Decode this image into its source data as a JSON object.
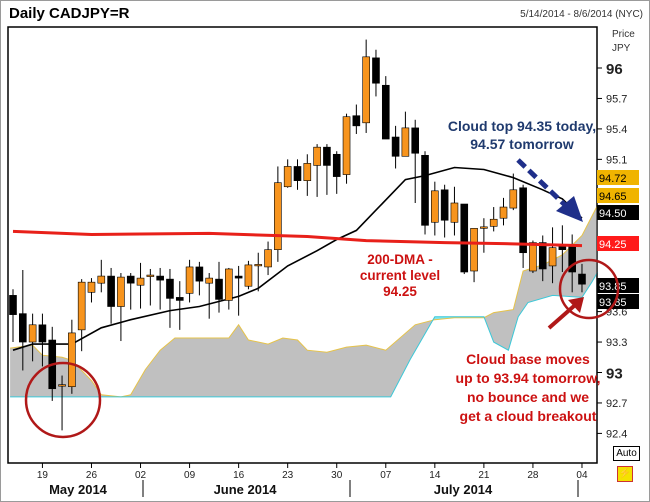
{
  "header": {
    "title": "Daily CADJPY=R",
    "date_range": "5/14/2014 - 8/6/2014 (NYC)"
  },
  "axis": {
    "price_label": "Price",
    "currency_label": "JPY",
    "auto_button": "Auto"
  },
  "chart_data": {
    "type": "candlestick",
    "title": "Daily CADJPY=R",
    "ylabel": "Price JPY",
    "ylim": [
      92.25,
      96.4
    ],
    "y_ticks": [
      "96",
      "95.7",
      "95.4",
      "95.1",
      "93.6",
      "93.3",
      "93",
      "92.7",
      "92.4"
    ],
    "x_ticks": [
      "19",
      "26",
      "02",
      "09",
      "16",
      "23",
      "30",
      "07",
      "14",
      "21",
      "28",
      "04"
    ],
    "x_tick_index": [
      3,
      8,
      13,
      18,
      23,
      28,
      33,
      38,
      43,
      48,
      53,
      58
    ],
    "months": [
      "May 2014",
      "June 2014",
      "July 2014"
    ],
    "ohlc": [
      [
        93.76,
        93.82,
        93.3,
        93.57
      ],
      [
        93.58,
        94.01,
        93.02,
        93.3
      ],
      [
        93.3,
        93.58,
        93.11,
        93.47
      ],
      [
        93.47,
        93.58,
        93.06,
        93.3
      ],
      [
        93.32,
        93.45,
        92.72,
        92.84
      ],
      [
        92.87,
        92.97,
        92.43,
        92.88
      ],
      [
        92.86,
        93.52,
        92.79,
        93.39
      ],
      [
        93.42,
        93.92,
        93.21,
        93.89
      ],
      [
        93.79,
        93.93,
        93.69,
        93.89
      ],
      [
        93.88,
        94.11,
        93.79,
        93.95
      ],
      [
        93.95,
        94.03,
        93.48,
        93.65
      ],
      [
        93.65,
        93.98,
        93.31,
        93.94
      ],
      [
        93.95,
        93.98,
        93.62,
        93.88
      ],
      [
        93.86,
        94.08,
        93.63,
        93.93
      ],
      [
        93.95,
        94.02,
        93.66,
        93.96
      ],
      [
        93.95,
        94.03,
        93.62,
        93.91
      ],
      [
        93.92,
        94.02,
        93.44,
        93.73
      ],
      [
        93.74,
        93.9,
        93.42,
        93.71
      ],
      [
        93.78,
        94.11,
        93.69,
        94.04
      ],
      [
        94.04,
        94.09,
        93.76,
        93.9
      ],
      [
        93.88,
        93.98,
        93.53,
        93.93
      ],
      [
        93.92,
        94.09,
        93.59,
        93.72
      ],
      [
        93.71,
        94.03,
        93.62,
        94.02
      ],
      [
        93.95,
        94.05,
        93.56,
        93.93
      ],
      [
        93.85,
        94.1,
        93.82,
        94.06
      ],
      [
        94.06,
        94.18,
        93.8,
        94.065
      ],
      [
        94.04,
        94.29,
        93.96,
        94.21
      ],
      [
        94.21,
        95.03,
        94.09,
        94.87
      ],
      [
        94.83,
        95.1,
        94.82,
        95.03
      ],
      [
        95.03,
        95.1,
        94.8,
        94.89
      ],
      [
        94.89,
        95.15,
        94.74,
        95.06
      ],
      [
        95.04,
        95.25,
        94.73,
        95.22
      ],
      [
        95.22,
        95.25,
        94.75,
        95.04
      ],
      [
        95.15,
        95.18,
        94.76,
        94.93
      ],
      [
        94.95,
        95.55,
        94.86,
        95.52
      ],
      [
        95.53,
        95.64,
        95.35,
        95.43
      ],
      [
        95.46,
        96.28,
        95.36,
        96.11
      ],
      [
        96.1,
        96.18,
        95.72,
        95.85
      ],
      [
        95.83,
        95.92,
        95.3,
        95.3
      ],
      [
        95.32,
        95.43,
        95.01,
        95.13
      ],
      [
        95.13,
        95.57,
        95.13,
        95.41
      ],
      [
        95.41,
        95.49,
        94.67,
        95.16
      ],
      [
        95.14,
        95.18,
        94.36,
        94.45
      ],
      [
        94.48,
        94.88,
        94.35,
        94.79
      ],
      [
        94.8,
        94.85,
        94.33,
        94.5
      ],
      [
        94.48,
        94.83,
        94.35,
        94.67
      ],
      [
        94.66,
        94.66,
        93.97,
        93.99
      ],
      [
        94.0,
        94.42,
        93.89,
        94.42
      ],
      [
        94.43,
        94.52,
        94.18,
        94.435
      ],
      [
        94.44,
        94.63,
        94.39,
        94.51
      ],
      [
        94.52,
        94.72,
        94.45,
        94.63
      ],
      [
        94.62,
        94.96,
        94.6,
        94.8
      ],
      [
        94.82,
        94.85,
        94.03,
        94.18
      ],
      [
        94.0,
        94.3,
        93.98,
        94.28
      ],
      [
        94.28,
        94.35,
        93.9,
        94.02
      ],
      [
        94.05,
        94.43,
        93.88,
        94.23
      ],
      [
        94.25,
        94.45,
        93.99,
        94.21
      ],
      [
        94.25,
        94.36,
        93.79,
        93.99
      ],
      [
        93.97,
        94.07,
        93.79,
        93.87
      ]
    ],
    "dma200": [
      [
        0,
        94.39
      ],
      [
        8,
        94.36
      ],
      [
        20,
        94.37
      ],
      [
        30,
        94.34
      ],
      [
        36,
        94.3
      ],
      [
        44,
        94.28
      ],
      [
        50,
        94.27
      ],
      [
        58,
        94.25
      ]
    ],
    "sma": [
      [
        0,
        93.22
      ],
      [
        2,
        93.28
      ],
      [
        6,
        93.28
      ],
      [
        9,
        93.44
      ],
      [
        12,
        93.52
      ],
      [
        16,
        93.61
      ],
      [
        19,
        93.65
      ],
      [
        23,
        93.75
      ],
      [
        25,
        93.83
      ],
      [
        28,
        94.05
      ],
      [
        31,
        94.2
      ],
      [
        33,
        94.31
      ],
      [
        35,
        94.4
      ],
      [
        37,
        94.6
      ],
      [
        40,
        94.9
      ],
      [
        42,
        94.94
      ],
      [
        45,
        95.02
      ],
      [
        48,
        95.0
      ],
      [
        51,
        94.92
      ],
      [
        54,
        94.8
      ],
      [
        56,
        94.71
      ],
      [
        58,
        94.52
      ]
    ],
    "cloud_upper": [
      [
        -0.3,
        93.24
      ],
      [
        2,
        93.27
      ],
      [
        3,
        93.17
      ],
      [
        5,
        93.15
      ],
      [
        6,
        93.12
      ],
      [
        8,
        92.92
      ],
      [
        9,
        92.78
      ],
      [
        11,
        92.76
      ],
      [
        12,
        92.78
      ],
      [
        13.5,
        93.03
      ],
      [
        15,
        93.22
      ],
      [
        16.5,
        93.34
      ],
      [
        20,
        93.34
      ],
      [
        22,
        93.34
      ],
      [
        23,
        93.47
      ],
      [
        24,
        93.32
      ],
      [
        26,
        93.28
      ],
      [
        27.5,
        93.34
      ],
      [
        29,
        93.32
      ],
      [
        30,
        93.22
      ],
      [
        32,
        93.2
      ],
      [
        34,
        93.25
      ],
      [
        36,
        93.27
      ],
      [
        38,
        93.22
      ],
      [
        41,
        93.47
      ],
      [
        43,
        93.52
      ],
      [
        45,
        93.54
      ],
      [
        48,
        93.54
      ],
      [
        49,
        93.59
      ],
      [
        51,
        93.62
      ],
      [
        52,
        94.0
      ],
      [
        54,
        94.06
      ],
      [
        56,
        94.16
      ],
      [
        58,
        94.35
      ],
      [
        59.6,
        94.65
      ]
    ],
    "cloud_lower": [
      [
        -0.3,
        92.76
      ],
      [
        38.5,
        92.76
      ],
      [
        40.5,
        93.13
      ],
      [
        43,
        93.55
      ],
      [
        48,
        93.55
      ],
      [
        49,
        93.3
      ],
      [
        50.5,
        93.22
      ],
      [
        51.5,
        93.55
      ],
      [
        52.5,
        93.69
      ],
      [
        55,
        93.76
      ],
      [
        58,
        93.74
      ],
      [
        59,
        93.89
      ],
      [
        59.6,
        93.99
      ]
    ],
    "price_tags": [
      {
        "value": "94.72",
        "color": "#f0b400",
        "text_color": "#000000"
      },
      {
        "value": "94.65",
        "color": "#f0b400",
        "text_color": "#000000"
      },
      {
        "value": "94.50",
        "color": "#000000",
        "text_color": "#ffffff"
      },
      {
        "value": "94.25",
        "color": "#ff1a1a",
        "text_color": "#ffffff"
      },
      {
        "value": "93.85",
        "color": "#000000",
        "text_color": "#ffffff"
      },
      {
        "value": "93.85",
        "color": "#000000",
        "text_color": "#ffffff"
      }
    ],
    "annotations": {
      "cloud_top": [
        "Cloud top 94.35 today,",
        "94.57 tomorrow"
      ],
      "dma": [
        "200-DMA -",
        "current level",
        "94.25"
      ],
      "cloud_base": [
        "Cloud base moves",
        "up to 93.94 tomorrow,",
        "no bounce and we",
        "get a cloud breakout"
      ]
    },
    "colors": {
      "up": "#f7941d",
      "down": "#000000",
      "dma200": "#e8201a",
      "sma": "#000000",
      "cloud": "#c0c0c0",
      "cloud_top_line": "#e6c34a",
      "cloud_base_line": "#3cc8d8",
      "cloud_inverted": "#7fe8f0",
      "note_blue": "#1f3a6e",
      "note_red": "#cc1111"
    }
  }
}
